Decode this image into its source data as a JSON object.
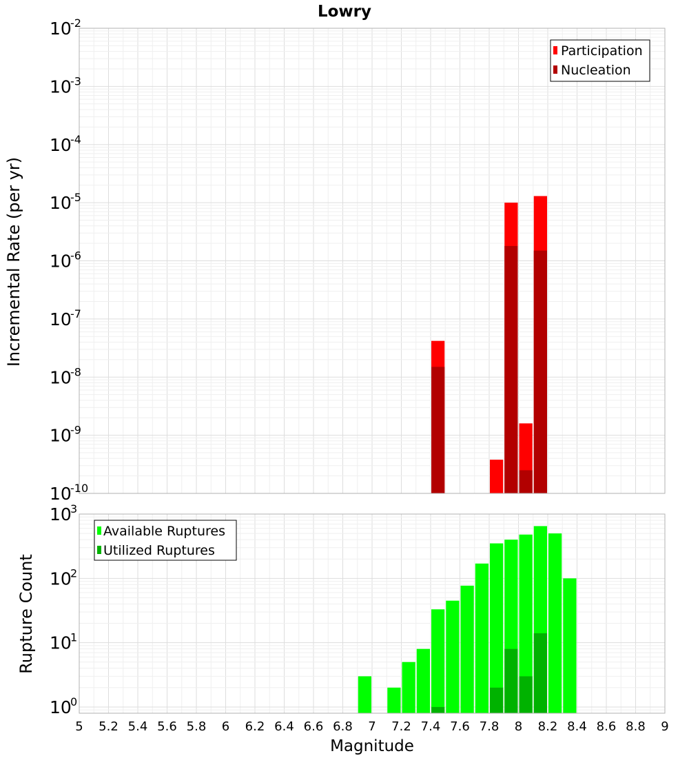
{
  "chart_data": [
    {
      "type": "bar",
      "title": "Lowry",
      "xlabel": "",
      "ylabel": "Incremental Rate (per yr)",
      "yscale": "log",
      "xlim": [
        5,
        9
      ],
      "ylim": [
        1e-10,
        0.01
      ],
      "grid": true,
      "legend_position": "top-right",
      "x": [
        7.45,
        7.85,
        7.95,
        8.05,
        8.15
      ],
      "series": [
        {
          "name": "Participation",
          "color": "#ff0000",
          "values": [
            4.2e-08,
            3.8e-10,
            1e-05,
            1.6e-09,
            1.3e-05
          ]
        },
        {
          "name": "Nucleation",
          "color": "#b20000",
          "values": [
            1.5e-08,
            null,
            1.8e-06,
            2.5e-10,
            1.5e-06
          ]
        }
      ]
    },
    {
      "type": "bar",
      "title": "",
      "xlabel": "Magnitude",
      "ylabel": "Rupture Count",
      "yscale": "log",
      "xlim": [
        5,
        9
      ],
      "ylim": [
        0.8,
        1000
      ],
      "grid": true,
      "legend_position": "top-left",
      "x": [
        6.95,
        7.15,
        7.25,
        7.35,
        7.45,
        7.55,
        7.65,
        7.75,
        7.85,
        7.95,
        8.05,
        8.15,
        8.25,
        8.35
      ],
      "series": [
        {
          "name": "Available Ruptures",
          "color": "#00ff00",
          "values": [
            3,
            2,
            5,
            8,
            33,
            45,
            77,
            170,
            350,
            400,
            480,
            650,
            500,
            100
          ]
        },
        {
          "name": "Utilized Ruptures",
          "color": "#00b200",
          "values": [
            null,
            null,
            null,
            null,
            1,
            null,
            null,
            null,
            2,
            8,
            3,
            14,
            null,
            null
          ]
        }
      ]
    }
  ],
  "x_ticks": [
    "5",
    "5.2",
    "5.4",
    "5.6",
    "5.8",
    "6",
    "6.2",
    "6.4",
    "6.6",
    "6.8",
    "7",
    "7.2",
    "7.4",
    "7.6",
    "7.8",
    "8",
    "8.2",
    "8.4",
    "8.6",
    "8.8",
    "9"
  ],
  "top_y_ticks": [
    {
      "base": "10",
      "exp": "-2"
    },
    {
      "base": "10",
      "exp": "-3"
    },
    {
      "base": "10",
      "exp": "-4"
    },
    {
      "base": "10",
      "exp": "-5"
    },
    {
      "base": "10",
      "exp": "-6"
    },
    {
      "base": "10",
      "exp": "-7"
    },
    {
      "base": "10",
      "exp": "-8"
    },
    {
      "base": "10",
      "exp": "-9"
    },
    {
      "base": "10",
      "exp": "-10"
    }
  ],
  "bottom_y_ticks": [
    {
      "base": "10",
      "exp": "3"
    },
    {
      "base": "10",
      "exp": "2"
    },
    {
      "base": "10",
      "exp": "1"
    },
    {
      "base": "10",
      "exp": "0"
    }
  ]
}
